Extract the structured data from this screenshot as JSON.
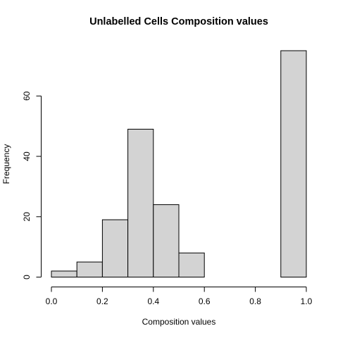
{
  "chart_data": {
    "type": "bar",
    "title": "Unlabelled Cells Composition values",
    "xlabel": "Composition values",
    "ylabel": "Frequency",
    "bin_edges": [
      0.0,
      0.1,
      0.2,
      0.3,
      0.4,
      0.5,
      0.6,
      0.7,
      0.8,
      0.9,
      1.0
    ],
    "values": [
      2,
      5,
      19,
      49,
      24,
      8,
      0,
      0,
      0,
      75
    ],
    "xlim": [
      0.0,
      1.0
    ],
    "ylim": [
      0,
      75
    ],
    "x_ticks": [
      0.0,
      0.2,
      0.4,
      0.6,
      0.8,
      1.0
    ],
    "x_tick_labels": [
      "0.0",
      "0.2",
      "0.4",
      "0.6",
      "0.8",
      "1.0"
    ],
    "y_ticks": [
      0,
      20,
      40,
      60
    ],
    "y_tick_labels": [
      "0",
      "20",
      "40",
      "60"
    ],
    "grid": false,
    "legend": "none",
    "bar_fill": "#d3d3d3",
    "bar_stroke": "#000000"
  }
}
